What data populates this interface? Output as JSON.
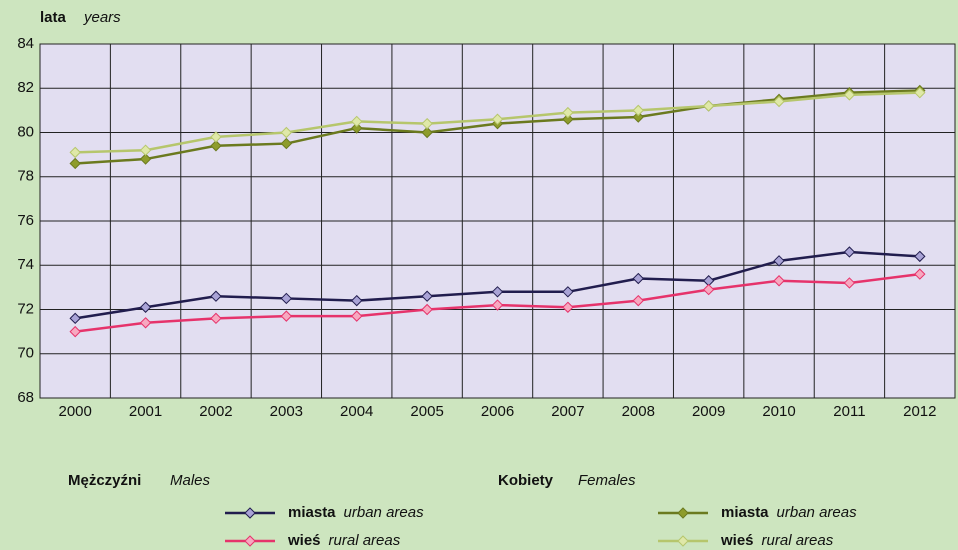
{
  "chart_data": {
    "type": "line",
    "y_label": "lata",
    "y_label_en": "years",
    "categories": [
      "2000",
      "2001",
      "2002",
      "2003",
      "2004",
      "2005",
      "2006",
      "2007",
      "2008",
      "2009",
      "2010",
      "2011",
      "2012"
    ],
    "ylim": [
      68,
      84
    ],
    "yticks": [
      68,
      70,
      72,
      74,
      76,
      78,
      80,
      82,
      84
    ],
    "grid": true,
    "legend_groups": [
      {
        "name": "Mężczyźni",
        "name_en": "Males"
      },
      {
        "name": "Kobiety",
        "name_en": "Females"
      }
    ],
    "series": [
      {
        "name": "miasta",
        "name_en": "urban areas",
        "color": "#211d4e",
        "marker": "#a9a3d6",
        "values": [
          71.6,
          72.1,
          72.6,
          72.5,
          72.4,
          72.6,
          72.8,
          72.8,
          73.4,
          73.3,
          74.2,
          74.6,
          74.4
        ]
      },
      {
        "name": "wieś",
        "name_en": "rural areas",
        "color": "#e6336b",
        "marker": "#f7a8c0",
        "values": [
          71.0,
          71.4,
          71.6,
          71.7,
          71.7,
          72.0,
          72.2,
          72.1,
          72.4,
          72.9,
          73.3,
          73.2,
          73.6
        ]
      },
      {
        "name": "miasta",
        "name_en": "urban areas",
        "color": "#6b7a1f",
        "marker": "#8e9c2c",
        "values": [
          78.6,
          78.8,
          79.4,
          79.5,
          80.2,
          80.0,
          80.4,
          80.6,
          80.7,
          81.2,
          81.5,
          81.8,
          81.9
        ]
      },
      {
        "name": "wieś",
        "name_en": "rural areas",
        "color": "#b6c66c",
        "marker": "#dfe8a8",
        "values": [
          79.1,
          79.2,
          79.8,
          80.0,
          80.5,
          80.4,
          80.6,
          80.9,
          81.0,
          81.2,
          81.4,
          81.7,
          81.8
        ]
      }
    ]
  }
}
